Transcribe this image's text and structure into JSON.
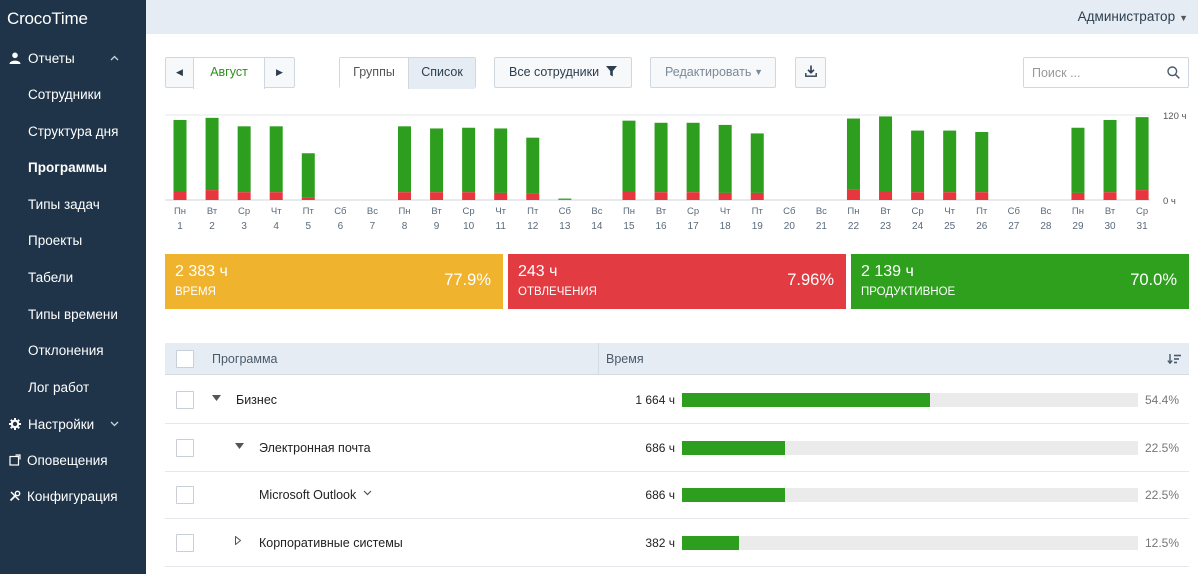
{
  "app": {
    "logo": "CrocoTime"
  },
  "topbar": {
    "user": "Администратор"
  },
  "sidebar": {
    "reports_label": "Отчеты",
    "items": [
      {
        "label": "Сотрудники",
        "active": false
      },
      {
        "label": "Структура дня",
        "active": false
      },
      {
        "label": "Программы",
        "active": true
      },
      {
        "label": "Типы задач",
        "active": false
      },
      {
        "label": "Проекты",
        "active": false
      },
      {
        "label": "Табели",
        "active": false
      },
      {
        "label": "Типы времени",
        "active": false
      },
      {
        "label": "Отклонения",
        "active": false
      },
      {
        "label": "Лог работ",
        "active": false
      }
    ],
    "settings_label": "Настройки",
    "alerts_label": "Оповещения",
    "config_label": "Конфигурация"
  },
  "toolbar": {
    "month": "Август",
    "groups_label": "Группы",
    "list_label": "Список",
    "employees_label": "Все сотрудники",
    "edit_label": "Редактировать",
    "search_placeholder": "Поиск ..."
  },
  "chart_data": {
    "type": "bar",
    "stacked": true,
    "x_labels": [
      "Пн",
      "Вт",
      "Ср",
      "Чт",
      "Пт",
      "Сб",
      "Вс",
      "Пн",
      "Вт",
      "Ср",
      "Чт",
      "Пт",
      "Сб",
      "Вс",
      "Пн",
      "Вт",
      "Ср",
      "Чт",
      "Пт",
      "Сб",
      "Вс",
      "Пн",
      "Вт",
      "Ср",
      "Чт",
      "Пт",
      "Сб",
      "Вс",
      "Пн",
      "Вт",
      "Ср"
    ],
    "categories": [
      "1",
      "2",
      "3",
      "4",
      "5",
      "6",
      "7",
      "8",
      "9",
      "10",
      "11",
      "12",
      "13",
      "14",
      "15",
      "16",
      "17",
      "18",
      "19",
      "20",
      "21",
      "22",
      "23",
      "24",
      "25",
      "26",
      "27",
      "28",
      "29",
      "30",
      "31"
    ],
    "series": [
      {
        "color": "#2e9e1e",
        "values": [
          101,
          102,
          93,
          93,
          63,
          0,
          0,
          93,
          90,
          91,
          91,
          79,
          1,
          0,
          100,
          98,
          98,
          96,
          84,
          0,
          0,
          100,
          106,
          87,
          87,
          85,
          0,
          0,
          92,
          102,
          103
        ]
      },
      {
        "color": "#e8363f",
        "values": [
          12,
          14,
          11,
          11,
          3,
          0,
          0,
          11,
          11,
          11,
          10,
          9,
          1,
          0,
          12,
          11,
          11,
          10,
          10,
          0,
          0,
          15,
          12,
          11,
          11,
          11,
          0,
          0,
          10,
          11,
          14
        ]
      }
    ],
    "y_ticks": [
      "120 ч",
      "0 ч"
    ],
    "ylim": [
      0,
      120
    ]
  },
  "stats": [
    {
      "value": "2 383 ч",
      "label": "Время",
      "percent": "77.9%",
      "color": "#efb32d"
    },
    {
      "value": "243 ч",
      "label": "Отвлечения",
      "percent": "7.96%",
      "color": "#e23b41"
    },
    {
      "value": "2 139 ч",
      "label": "Продуктивное",
      "percent": "70.0%",
      "color": "#2ea01e"
    }
  ],
  "table": {
    "col_program": "Программа",
    "col_time": "Время",
    "rows": [
      {
        "name": "Бизнес",
        "time": "1 664 ч",
        "share": 0.544,
        "percent": "54.4%",
        "toggle": "expanded",
        "indent": 0
      },
      {
        "name": "Электронная почта",
        "time": "686 ч",
        "share": 0.225,
        "percent": "22.5%",
        "toggle": "expanded",
        "indent": 1
      },
      {
        "name": "Microsoft Outlook",
        "time": "686 ч",
        "share": 0.225,
        "percent": "22.5%",
        "toggle": "dropdown",
        "indent": 2
      },
      {
        "name": "Корпоративные системы",
        "time": "382 ч",
        "share": 0.125,
        "percent": "12.5%",
        "toggle": "collapsed",
        "indent": 1
      }
    ]
  }
}
